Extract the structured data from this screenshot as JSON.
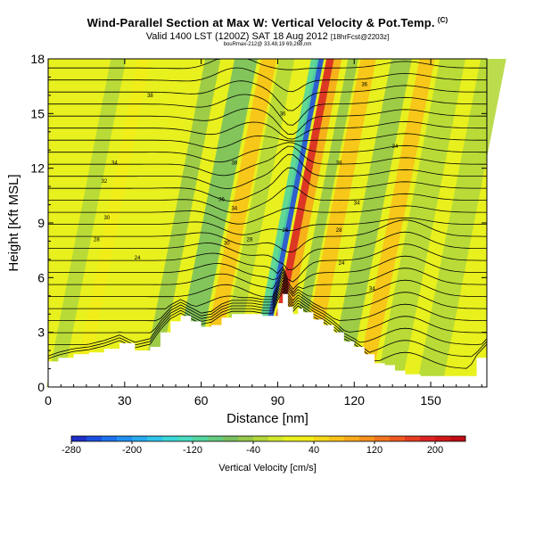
{
  "header": {
    "title": "Wind-Parallel Section at Max W: Vertical Velocity & Pot.Temp.",
    "title_mark": "(C)",
    "subtitle_main": "Valid 1400 LST (1200Z) SAT 18 Aug 2012",
    "subtitle_tag": "[18hrFcst@2203z]",
    "source": "bouRmax-212@ 33.48,19 69,268,nm"
  },
  "chart_data": {
    "type": "heatmap",
    "title": "Wind-Parallel Section at Max W: Vertical Velocity & Pot.Temp.",
    "xlabel": "Distance [nm]",
    "ylabel": "Height [Kft MSL]",
    "xlim": [
      0,
      172
    ],
    "ylim": [
      0,
      18
    ],
    "xticks": [
      "0",
      "30",
      "60",
      "90",
      "120",
      "150"
    ],
    "yticks": [
      "0",
      "3",
      "6",
      "9",
      "12",
      "15",
      "18"
    ],
    "terrain": {
      "x": [
        0,
        4,
        10,
        16,
        22,
        28,
        34,
        40,
        44,
        48,
        52,
        56,
        60,
        64,
        68,
        72,
        76,
        80,
        84,
        88,
        90,
        92,
        94,
        96,
        98,
        100,
        104,
        108,
        112,
        116,
        120,
        124,
        128,
        132,
        136,
        140,
        146,
        152,
        158,
        164,
        168,
        172
      ],
      "height_kft": [
        1.4,
        1.6,
        1.8,
        1.9,
        2.1,
        2.4,
        2.0,
        2.2,
        3.0,
        3.6,
        3.9,
        3.6,
        3.3,
        3.4,
        3.8,
        4.0,
        4.0,
        4.0,
        3.9,
        3.9,
        4.6,
        5.1,
        4.4,
        4.0,
        4.3,
        4.1,
        3.7,
        3.4,
        3.0,
        2.5,
        2.2,
        1.8,
        1.3,
        1.2,
        0.9,
        0.7,
        0.6,
        0.6,
        0.6,
        0.6,
        1.6,
        2.2
      ]
    },
    "velocity_bands": [
      {
        "x_center": 15,
        "width": 6,
        "w": -25
      },
      {
        "x_center": 25,
        "width": 5,
        "w": 25
      },
      {
        "x_center": 52,
        "width": 6,
        "w": -55
      },
      {
        "x_center": 65,
        "width": 9,
        "w": -65
      },
      {
        "x_center": 74,
        "width": 6,
        "w": 60
      },
      {
        "x_center": 81,
        "width": 6,
        "w": -40
      },
      {
        "x_center": 94,
        "width": 3,
        "w": -260
      },
      {
        "x_center": 92,
        "width": 3,
        "w": -120
      },
      {
        "x_center": 98,
        "width": 3,
        "w": 190
      },
      {
        "x_center": 101,
        "width": 3,
        "w": 80
      },
      {
        "x_center": 107,
        "width": 4,
        "w": -60
      },
      {
        "x_center": 113,
        "width": 6,
        "w": 60
      },
      {
        "x_center": 126,
        "width": 8,
        "w": -55
      },
      {
        "x_center": 136,
        "width": 6,
        "w": 75
      },
      {
        "x_center": 146,
        "width": 10,
        "w": -35
      },
      {
        "x_center": 162,
        "width": 10,
        "w": -40
      }
    ],
    "theta_levels": [
      300,
      302,
      304,
      306,
      308,
      310,
      312,
      314,
      316,
      318,
      320,
      322,
      324,
      326,
      328,
      330,
      332,
      334,
      336,
      338,
      340,
      342,
      344,
      346,
      348,
      350,
      352
    ],
    "contour_labels": [
      {
        "text": "38",
        "x": 40,
        "y": 15.9
      },
      {
        "text": "34",
        "x": 26,
        "y": 12.2
      },
      {
        "text": "32",
        "x": 22,
        "y": 11.2
      },
      {
        "text": "30",
        "x": 23,
        "y": 9.2
      },
      {
        "text": "28",
        "x": 19,
        "y": 8.0
      },
      {
        "text": "24",
        "x": 35,
        "y": 7.0
      },
      {
        "text": "38",
        "x": 73,
        "y": 12.2
      },
      {
        "text": "36",
        "x": 68,
        "y": 10.2
      },
      {
        "text": "34",
        "x": 73,
        "y": 9.7
      },
      {
        "text": "30",
        "x": 70,
        "y": 7.8
      },
      {
        "text": "28",
        "x": 79,
        "y": 8.0
      },
      {
        "text": "26",
        "x": 93,
        "y": 8.5
      },
      {
        "text": "36",
        "x": 92,
        "y": 14.9
      },
      {
        "text": "38",
        "x": 114,
        "y": 12.2
      },
      {
        "text": "34",
        "x": 121,
        "y": 10.0
      },
      {
        "text": "28",
        "x": 114,
        "y": 8.5
      },
      {
        "text": "24",
        "x": 115,
        "y": 6.7
      },
      {
        "text": "34",
        "x": 136,
        "y": 13.1
      },
      {
        "text": "34",
        "x": 127,
        "y": 5.3
      },
      {
        "text": "36",
        "x": 124,
        "y": 16.5
      }
    ],
    "colorbar": {
      "label": "Vertical Velocity [cm/s]",
      "range": [
        -280,
        240
      ],
      "tick_labels": [
        "-280",
        "-200",
        "-120",
        "-40",
        "40",
        "120",
        "200"
      ],
      "bin_edges": [
        -280,
        -260,
        -240,
        -220,
        -200,
        -180,
        -160,
        -140,
        -120,
        -100,
        -80,
        -60,
        -40,
        -20,
        0,
        20,
        40,
        60,
        80,
        100,
        120,
        140,
        160,
        180,
        200,
        220,
        240
      ],
      "colors": [
        "#1f2fc8",
        "#1a4fe0",
        "#1c72ee",
        "#2090f2",
        "#28aaf0",
        "#30c4ea",
        "#3ad6da",
        "#48dcc0",
        "#52d6a0",
        "#64cc80",
        "#78c060",
        "#96c84a",
        "#b4d83a",
        "#d2e82c",
        "#e8f01e",
        "#f2ec18",
        "#f6d818",
        "#f8c218",
        "#f8aa1a",
        "#f6901c",
        "#f2741e",
        "#ee5820",
        "#e63c22",
        "#dc2424",
        "#d01818",
        "#c00c14"
      ]
    }
  }
}
